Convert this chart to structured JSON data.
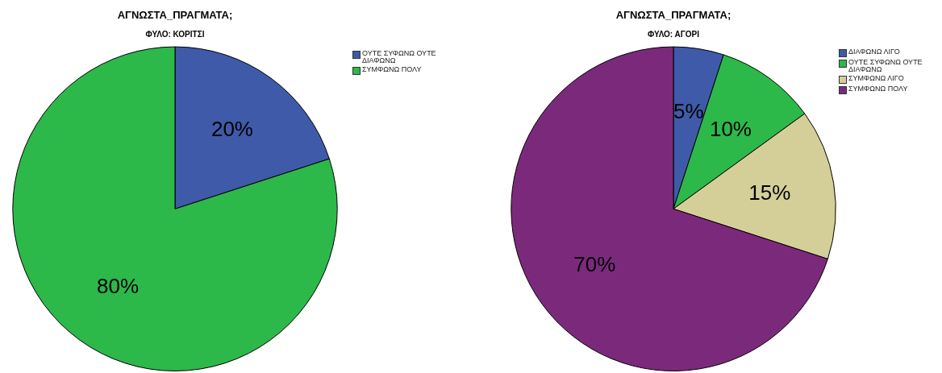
{
  "chart_data": [
    {
      "type": "pie",
      "title": "ΑΓΝΩΣΤΑ_ΠΡΑΓΜΑΤΑ;",
      "subtitle": "ΦΥΛΟ: ΚΟΡΙΤΣΙ",
      "categories": [
        "ΟΥΤΕ ΣΥΦΩΝΩ ΟΥΤΕ ΔΙΑΦΩΝΩ",
        "ΣΥΜΦΩΝΩ ΠΟΛΥ"
      ],
      "values": [
        20,
        80
      ],
      "colors": [
        "#3f5aa8",
        "#2db84a"
      ],
      "value_labels": [
        "20%",
        "80%"
      ],
      "legend": "top right"
    },
    {
      "type": "pie",
      "title": "ΑΓΝΩΣΤΑ_ΠΡΑΓΜΑΤΑ;",
      "subtitle": "ΦΥΛΟ: ΑΓΟΡΙ",
      "categories": [
        "ΔΙΑΦΩΝΩ ΛΙΓΟ",
        "ΟΥΤΕ ΣΥΦΩΝΩ ΟΥΤΕ ΔΙΑΦΩΝΩ",
        "ΣΥΜΦΩΝΩ ΛΙΓΟ",
        "ΣΥΜΦΩΝΩ ΠΟΛΥ"
      ],
      "values": [
        5,
        10,
        15,
        70
      ],
      "colors": [
        "#3f5aa8",
        "#2db84a",
        "#d4cf98",
        "#7b2a7b"
      ],
      "value_labels": [
        "5%",
        "10%",
        "15%",
        "70%"
      ],
      "legend": "top right"
    }
  ]
}
